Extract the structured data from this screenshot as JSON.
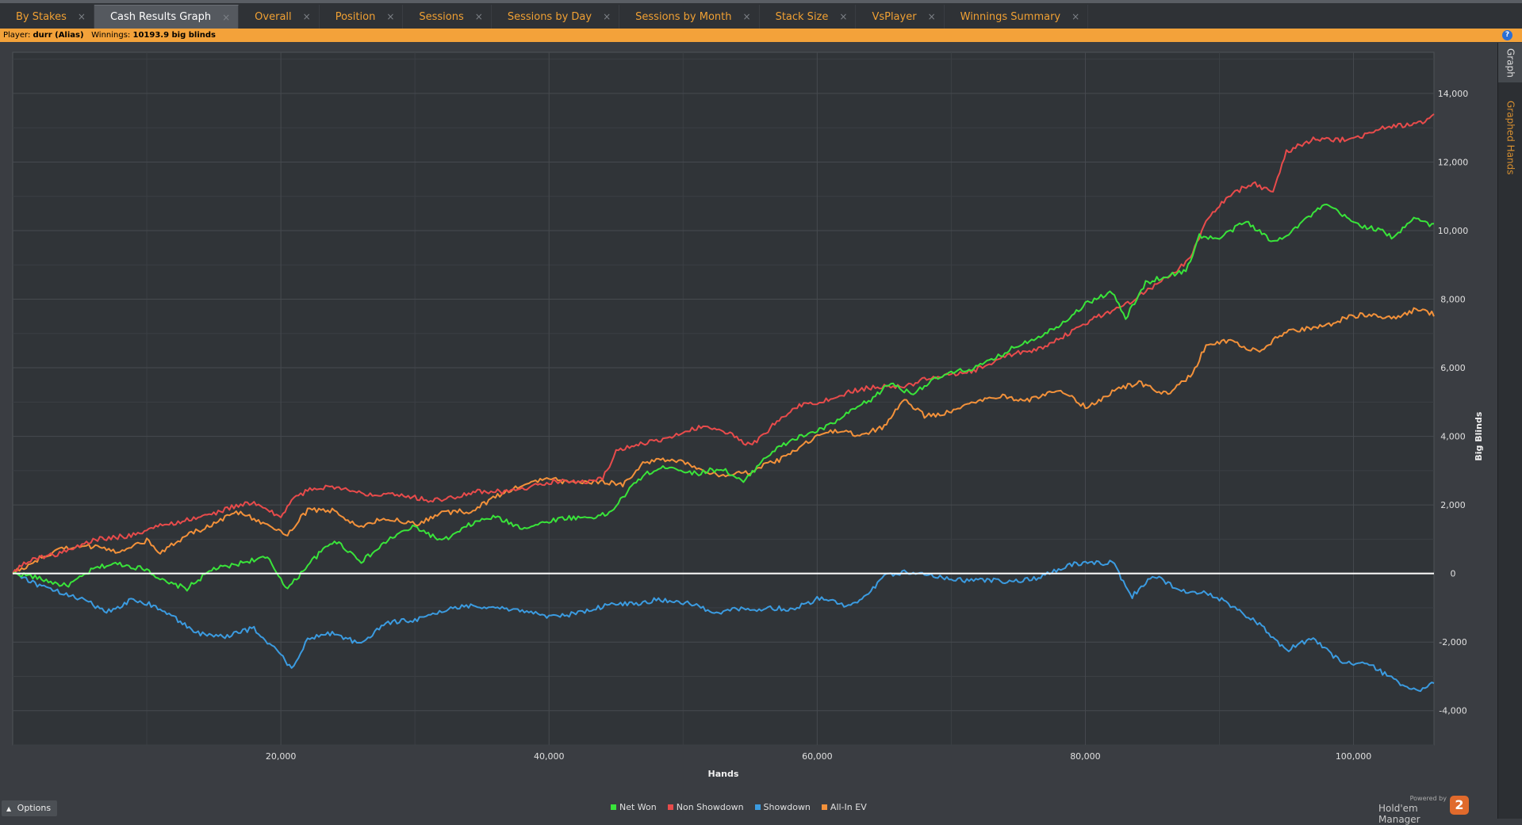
{
  "tabs": [
    {
      "label": "By Stakes",
      "active": false
    },
    {
      "label": "Cash Results Graph",
      "active": true
    },
    {
      "label": "Overall",
      "active": false
    },
    {
      "label": "Position",
      "active": false
    },
    {
      "label": "Sessions",
      "active": false
    },
    {
      "label": "Sessions by Day",
      "active": false
    },
    {
      "label": "Sessions by Month",
      "active": false
    },
    {
      "label": "Stack Size",
      "active": false
    },
    {
      "label": "VsPlayer",
      "active": false
    },
    {
      "label": "Winnings Summary",
      "active": false
    }
  ],
  "tab_close_glyph": "×",
  "info": {
    "player_label": "Player:",
    "player_value": "durr (Alias)",
    "winnings_label": "Winnings:",
    "winnings_value": "10193.9 big blinds",
    "help_glyph": "?"
  },
  "side_tabs": {
    "graph": "Graph",
    "graphed_hands": "Graphed Hands"
  },
  "options_label": "Options",
  "brand": {
    "powered_by": "Powered by",
    "name": "Hold'em Manager",
    "logo": "2"
  },
  "colors": {
    "net_won": "#39e43a",
    "non_showdown": "#e84b4b",
    "showdown": "#3b9be0",
    "all_in_ev": "#f3913a",
    "plot_bg": "#303438",
    "grid": "#464a4f",
    "zero_line": "#ffffff"
  },
  "chart_data": {
    "type": "line",
    "xlabel": "Hands",
    "ylabel": "Big Blinds",
    "xlim": [
      0,
      106000
    ],
    "ylim": [
      -5000,
      15200
    ],
    "xticks": [
      20000,
      40000,
      60000,
      80000,
      100000
    ],
    "xtick_labels": [
      "20,000",
      "40,000",
      "60,000",
      "80,000",
      "100,000"
    ],
    "yticks": [
      -4000,
      -2000,
      0,
      2000,
      4000,
      6000,
      8000,
      10000,
      12000,
      14000
    ],
    "ytick_labels": [
      "-4,000",
      "-2,000",
      "0",
      "2,000",
      "4,000",
      "6,000",
      "8,000",
      "10,000",
      "12,000",
      "14,000"
    ],
    "grid": true,
    "legend_position": "bottom",
    "series": [
      {
        "name": "Net Won",
        "key": "net_won",
        "x": [
          0,
          2000,
          4000,
          6000,
          8000,
          10000,
          11500,
          13000,
          15000,
          17000,
          19000,
          20500,
          22000,
          24000,
          26000,
          28000,
          30000,
          32000,
          34000,
          36000,
          38000,
          40000,
          42000,
          44500,
          45000,
          47000,
          49000,
          51000,
          53000,
          54500,
          56000,
          58000,
          60000,
          62000,
          64000,
          65500,
          67000,
          70000,
          72000,
          74000,
          76000,
          78000,
          80000,
          82000,
          83000,
          84500,
          86000,
          87500,
          88500,
          90000,
          92000,
          94000,
          96000,
          98000,
          100000,
          102000,
          103000,
          104500,
          106000
        ],
        "y": [
          0,
          -200,
          -300,
          100,
          250,
          200,
          -300,
          -500,
          200,
          300,
          400,
          -400,
          300,
          900,
          400,
          1000,
          1300,
          1000,
          1400,
          1600,
          1400,
          1500,
          1600,
          1800,
          2000,
          2800,
          3200,
          2900,
          3000,
          2700,
          3400,
          3800,
          4200,
          4600,
          5000,
          5600,
          5300,
          5800,
          6100,
          6400,
          6800,
          7300,
          7800,
          8200,
          7500,
          8500,
          8600,
          8800,
          9900,
          9800,
          10200,
          9700,
          10200,
          10700,
          10300,
          10000,
          9700,
          10400,
          10200
        ]
      },
      {
        "name": "Non Showdown",
        "key": "non_showdown",
        "x": [
          0,
          2000,
          4000,
          6000,
          8000,
          10000,
          12000,
          14000,
          16000,
          18000,
          20000,
          20800,
          22000,
          24000,
          26000,
          28000,
          30000,
          32000,
          34000,
          36000,
          38000,
          40000,
          42000,
          44000,
          45000,
          47000,
          49000,
          51000,
          53000,
          55000,
          56000,
          57000,
          59000,
          61000,
          63000,
          65000,
          67000,
          69000,
          71000,
          73000,
          75000,
          77000,
          79000,
          81000,
          83000,
          85000,
          87000,
          88000,
          89000,
          90000,
          91000,
          92500,
          94000,
          95000,
          97000,
          99000,
          101000,
          103000,
          105000,
          106000
        ],
        "y": [
          0,
          500,
          700,
          900,
          1100,
          1300,
          1400,
          1700,
          1900,
          2000,
          1700,
          2200,
          2400,
          2500,
          2400,
          2300,
          2200,
          2200,
          2300,
          2400,
          2500,
          2600,
          2700,
          2800,
          3500,
          3800,
          4000,
          4200,
          4200,
          3800,
          4000,
          4400,
          5000,
          5100,
          5300,
          5500,
          5500,
          5700,
          5900,
          6100,
          6400,
          6700,
          7000,
          7500,
          7900,
          8300,
          8900,
          9400,
          10300,
          10700,
          11000,
          11400,
          11200,
          12300,
          12600,
          12700,
          12800,
          13000,
          13200,
          13400
        ]
      },
      {
        "name": "Showdown",
        "key": "showdown",
        "x": [
          0,
          2000,
          4000,
          5000,
          7000,
          9000,
          10000,
          12000,
          14000,
          16000,
          18000,
          20000,
          20800,
          22000,
          24000,
          26000,
          28000,
          30000,
          32000,
          34000,
          36000,
          38000,
          40000,
          42000,
          44000,
          46000,
          48000,
          50000,
          52000,
          54000,
          56000,
          58000,
          60000,
          62000,
          63000,
          65000,
          67000,
          70000,
          72000,
          74000,
          76000,
          78000,
          80000,
          82000,
          83500,
          85000,
          87000,
          89000,
          91000,
          93000,
          95000,
          97000,
          99000,
          101000,
          103000,
          105000,
          106000
        ],
        "y": [
          0,
          -300,
          -600,
          -800,
          -1100,
          -700,
          -900,
          -1300,
          -1700,
          -1900,
          -1600,
          -2300,
          -2800,
          -2000,
          -1700,
          -2000,
          -1500,
          -1300,
          -1100,
          -1000,
          -900,
          -1100,
          -1300,
          -1100,
          -1000,
          -900,
          -700,
          -900,
          -1100,
          -1000,
          -1100,
          -1000,
          -700,
          -1000,
          -900,
          0,
          0,
          -100,
          -200,
          -300,
          -100,
          100,
          300,
          400,
          -700,
          -100,
          -400,
          -600,
          -1000,
          -1400,
          -2300,
          -1900,
          -2500,
          -2700,
          -3100,
          -3400,
          -3200
        ]
      },
      {
        "name": "All-In EV",
        "key": "all_in_ev",
        "x": [
          0,
          2000,
          4000,
          6000,
          8000,
          10000,
          11000,
          13000,
          15000,
          17000,
          19000,
          20500,
          22000,
          24000,
          26000,
          28000,
          30000,
          32000,
          34000,
          36000,
          38000,
          40000,
          42000,
          44000,
          45500,
          47000,
          49000,
          51000,
          53000,
          55000,
          57000,
          59000,
          61000,
          63000,
          65000,
          66500,
          68000,
          70000,
          72000,
          74000,
          76000,
          78000,
          80000,
          82000,
          84000,
          86000,
          88000,
          89000,
          91000,
          93000,
          95000,
          97000,
          99000,
          101000,
          103000,
          104500,
          106000
        ],
        "y": [
          0,
          500,
          700,
          800,
          700,
          900,
          600,
          1200,
          1400,
          1800,
          1500,
          1100,
          1800,
          1900,
          1300,
          1600,
          1500,
          1700,
          1800,
          2300,
          2500,
          2800,
          2700,
          2600,
          2600,
          3300,
          3300,
          3100,
          2900,
          2900,
          3300,
          3800,
          4100,
          4100,
          4300,
          5000,
          4600,
          4800,
          5000,
          5200,
          5100,
          5300,
          4900,
          5300,
          5500,
          5300,
          5800,
          6600,
          6800,
          6500,
          7000,
          7200,
          7400,
          7500,
          7500,
          7700,
          7500
        ]
      }
    ]
  }
}
